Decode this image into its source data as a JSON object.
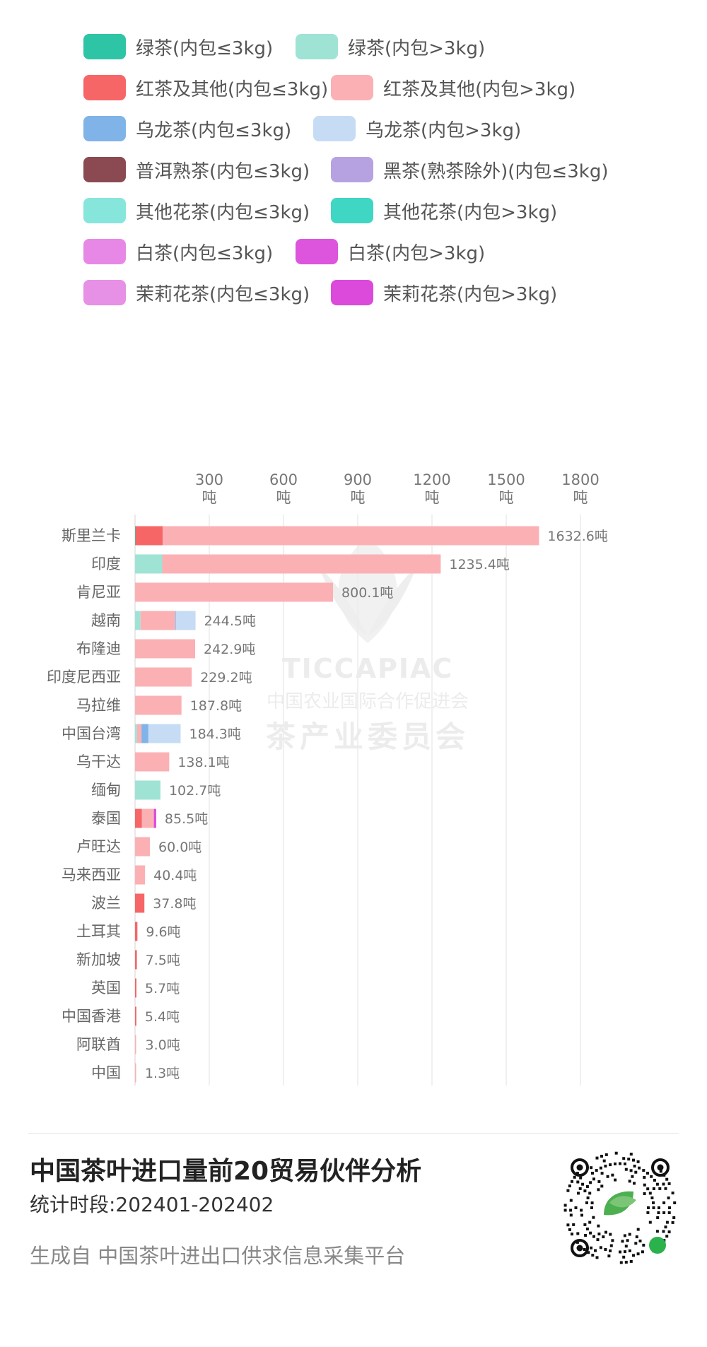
{
  "legend": [
    {
      "label": "绿茶(内包≤3kg)",
      "color": "#2EC4A6"
    },
    {
      "label": "绿茶(内包>3kg)",
      "color": "#9FE3D5"
    },
    {
      "label": "红茶及其他(内包≤3kg)",
      "color": "#F76666"
    },
    {
      "label": "红茶及其他(内包>3kg)",
      "color": "#FBB1B4"
    },
    {
      "label": "乌龙茶(内包≤3kg)",
      "color": "#80B4E8"
    },
    {
      "label": "乌龙茶(内包>3kg)",
      "color": "#C5DCF4"
    },
    {
      "label": "普洱熟茶(内包≤3kg)",
      "color": "#8B4A52"
    },
    {
      "label": "黑茶(熟茶除外)(内包≤3kg)",
      "color": "#B6A2E0"
    },
    {
      "label": "其他花茶(内包≤3kg)",
      "color": "#86E6DC"
    },
    {
      "label": "其他花茶(内包>3kg)",
      "color": "#3FD6C4"
    },
    {
      "label": "白茶(内包≤3kg)",
      "color": "#E888E6"
    },
    {
      "label": "白茶(内包>3kg)",
      "color": "#DC55DC"
    },
    {
      "label": "茉莉花茶(内包≤3kg)",
      "color": "#E690E6"
    },
    {
      "label": "茉莉花茶(内包>3kg)",
      "color": "#DC4ADC"
    }
  ],
  "chart_data": {
    "type": "bar",
    "orientation": "horizontal",
    "stacked": true,
    "x_ticks": [
      300,
      600,
      900,
      1200,
      1500,
      1800
    ],
    "x_unit": "吨",
    "xlim": [
      0,
      1800
    ],
    "grid": true,
    "legend_position": "top",
    "categories": [
      "斯里兰卡",
      "印度",
      "肯尼亚",
      "越南",
      "布隆迪",
      "印度尼西亚",
      "马拉维",
      "中国台湾",
      "乌干达",
      "缅甸",
      "泰国",
      "卢旺达",
      "马来西亚",
      "波兰",
      "土耳其",
      "新加坡",
      "英国",
      "中国香港",
      "阿联酋",
      "中国"
    ],
    "totals": [
      1632.6,
      1235.4,
      800.1,
      244.5,
      242.9,
      229.2,
      187.8,
      184.3,
      138.1,
      102.7,
      85.5,
      60.0,
      40.4,
      37.8,
      9.6,
      7.5,
      5.7,
      5.4,
      3.0,
      1.3
    ],
    "total_labels": [
      "1632.6吨",
      "1235.4吨",
      "800.1吨",
      "244.5吨",
      "242.9吨",
      "229.2吨",
      "187.8吨",
      "184.3吨",
      "138.1吨",
      "102.7吨",
      "85.5吨",
      "60.0吨",
      "40.4吨",
      "37.8吨",
      "9.6吨",
      "7.5吨",
      "5.7吨",
      "5.4吨",
      "3.0吨",
      "1.3吨"
    ],
    "series": [
      {
        "name": "绿茶(内包≤3kg)",
        "color": "#2EC4A6",
        "values": [
          2,
          0,
          0,
          0,
          0,
          0,
          0,
          0,
          0,
          0,
          0,
          0,
          0,
          0,
          0,
          0,
          0,
          0,
          0,
          0
        ]
      },
      {
        "name": "绿茶(内包>3kg)",
        "color": "#9FE3D5",
        "values": [
          0,
          110,
          0,
          22,
          0,
          0,
          0,
          8,
          0,
          102.7,
          0,
          0,
          0,
          0,
          0,
          0,
          0,
          0,
          0,
          0
        ]
      },
      {
        "name": "红茶及其他(内包≤3kg)",
        "color": "#F76666",
        "values": [
          110,
          0,
          0,
          0,
          0,
          0,
          0,
          0,
          0,
          0,
          28,
          0,
          0,
          37.8,
          9.6,
          7.5,
          5.7,
          5.4,
          0,
          0
        ]
      },
      {
        "name": "红茶及其他(内包>3kg)",
        "color": "#FBB1B4",
        "values": [
          1520.6,
          1125.4,
          800.1,
          140,
          242.9,
          229.2,
          187.8,
          18,
          138.1,
          0,
          48,
          60.0,
          40.4,
          0,
          0,
          0,
          0,
          0,
          3.0,
          1.3
        ]
      },
      {
        "name": "乌龙茶(内包≤3kg)",
        "color": "#80B4E8",
        "values": [
          0,
          0,
          0,
          2.5,
          0,
          0,
          0,
          28,
          0,
          0,
          0,
          0,
          0,
          0,
          0,
          0,
          0,
          0,
          0,
          0
        ]
      },
      {
        "name": "乌龙茶(内包>3kg)",
        "color": "#C5DCF4",
        "values": [
          0,
          0,
          0,
          80,
          0,
          0,
          0,
          130.3,
          0,
          0,
          0,
          0,
          0,
          0,
          0,
          0,
          0,
          0,
          0,
          0
        ]
      },
      {
        "name": "茉莉花茶(内包>3kg)",
        "color": "#DC4ADC",
        "values": [
          0,
          0,
          0,
          0,
          0,
          0,
          0,
          0,
          0,
          0,
          9.5,
          0,
          0,
          0,
          0,
          0,
          0,
          0,
          0,
          0
        ]
      }
    ]
  },
  "watermark": {
    "title": "TICCAPIAC",
    "subtitle": "中国农业国际合作促进会",
    "subtitle2": "茶产业委员会"
  },
  "footer": {
    "title": "中国茶叶进口量前20贸易伙伴分析",
    "period": "统计时段:202401-202402",
    "source": "生成自 中国茶叶进出口供求信息采集平台"
  }
}
